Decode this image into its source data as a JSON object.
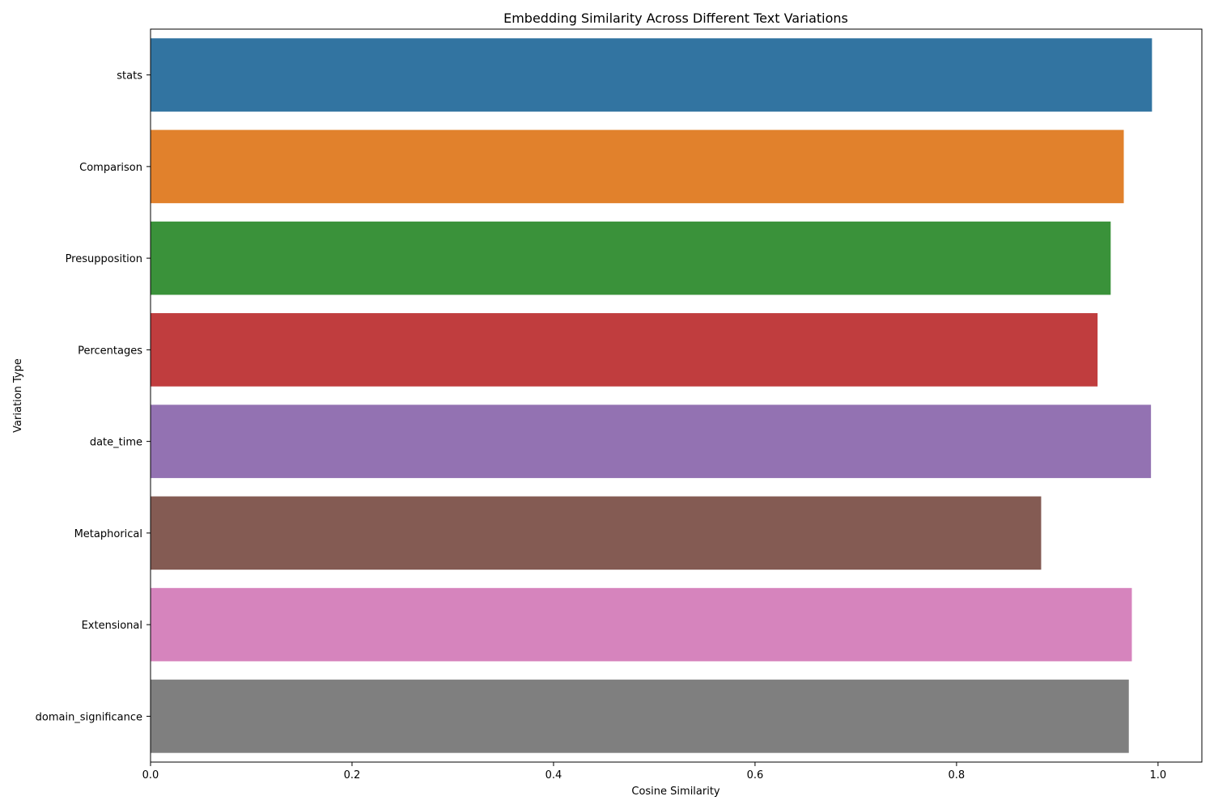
{
  "chart_data": {
    "type": "bar",
    "orientation": "horizontal",
    "title": "Embedding Similarity Across Different Text Variations",
    "xlabel": "Cosine Similarity",
    "ylabel": "Variation Type",
    "categories": [
      "stats",
      "Comparison",
      "Presupposition",
      "Percentages",
      "date_time",
      "Metaphorical",
      "Extensional",
      "domain_significance"
    ],
    "values": [
      0.994,
      0.966,
      0.953,
      0.94,
      0.993,
      0.884,
      0.974,
      0.971
    ],
    "colors": [
      "#3274a1",
      "#e1812c",
      "#3a923a",
      "#c03d3e",
      "#9372b2",
      "#845b53",
      "#d684bd",
      "#7f7f7f"
    ],
    "xlim": [
      0,
      1.0435
    ],
    "xticks": [
      "0.0",
      "0.2",
      "0.4",
      "0.6",
      "0.8",
      "1.0"
    ],
    "grid": false,
    "legend": "none"
  }
}
